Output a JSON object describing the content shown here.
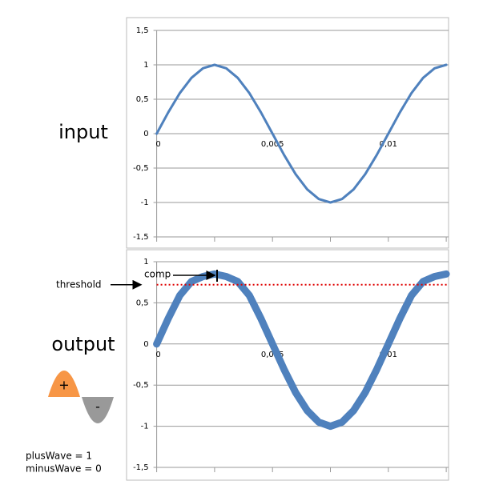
{
  "labels": {
    "input": "input",
    "output": "output",
    "plus": "+",
    "minus": "-",
    "plus_wave": "plusWave = 1",
    "minus_wave": "minusWave = 0"
  },
  "chart_data": [
    {
      "type": "line",
      "line_width": 3,
      "color": "#4f81bd",
      "x": [
        0,
        0.0005,
        0.001,
        0.0015,
        0.002,
        0.0025,
        0.003,
        0.0035,
        0.004,
        0.0045,
        0.005,
        0.0055,
        0.006,
        0.0065,
        0.007,
        0.0075,
        0.008,
        0.0085,
        0.009,
        0.0095,
        0.01,
        0.0105,
        0.011,
        0.0115,
        0.012,
        0.0125
      ],
      "values": [
        0,
        0.31,
        0.59,
        0.81,
        0.95,
        1,
        0.95,
        0.81,
        0.59,
        0.31,
        0,
        -0.31,
        -0.59,
        -0.81,
        -0.95,
        -1,
        -0.95,
        -0.81,
        -0.59,
        -0.31,
        0,
        0.31,
        0.59,
        0.81,
        0.95,
        1
      ],
      "xlim": [
        -0.0013,
        0.0126
      ],
      "xticks": [
        0,
        {
          "value": 0.005,
          "label": "0,005"
        },
        {
          "value": 0.01,
          "label": "0,01"
        }
      ],
      "x_minor_ticks": [
        0.0025,
        0.0075,
        0.0125
      ],
      "ylim": [
        -1.5,
        1.5
      ],
      "yticks": [
        {
          "value": 1.5,
          "label": "1,5"
        },
        1,
        {
          "value": 0.5,
          "label": "0,5"
        },
        0,
        {
          "value": -0.5,
          "label": "-0,5"
        },
        -1,
        {
          "value": -1.5,
          "label": "-1,5"
        }
      ],
      "grid": true
    },
    {
      "type": "line",
      "line_width": 9,
      "color": "#4f81bd",
      "x": [
        0,
        0.0005,
        0.001,
        0.0015,
        0.002,
        0.0025,
        0.003,
        0.0035,
        0.004,
        0.0045,
        0.005,
        0.0055,
        0.006,
        0.0065,
        0.007,
        0.0075,
        0.008,
        0.0085,
        0.009,
        0.0095,
        0.01,
        0.0105,
        0.011,
        0.0115,
        0.012,
        0.0125
      ],
      "values": [
        0,
        0.31,
        0.59,
        0.76,
        0.82,
        0.85,
        0.82,
        0.76,
        0.59,
        0.31,
        0,
        -0.31,
        -0.59,
        -0.81,
        -0.95,
        -1,
        -0.95,
        -0.81,
        -0.59,
        -0.31,
        0,
        0.31,
        0.59,
        0.76,
        0.82,
        0.85
      ],
      "xlim": [
        -0.0013,
        0.0126
      ],
      "xticks": [
        0,
        {
          "value": 0.005,
          "label": "0,005"
        },
        {
          "value": 0.01,
          "label": "0,01"
        }
      ],
      "x_minor_ticks": [
        0.0025,
        0.0075,
        0.0125
      ],
      "ylim": [
        -1.5,
        1
      ],
      "yticks": [
        1,
        {
          "value": 0.5,
          "label": "0,5"
        },
        0,
        {
          "value": -0.5,
          "label": "-0,5"
        },
        -1,
        {
          "value": -1.5,
          "label": "-1,5"
        }
      ],
      "grid": true,
      "threshold": {
        "label": "threshold",
        "value": 0.72,
        "color": "#e00000"
      },
      "annotation": "comp"
    }
  ]
}
